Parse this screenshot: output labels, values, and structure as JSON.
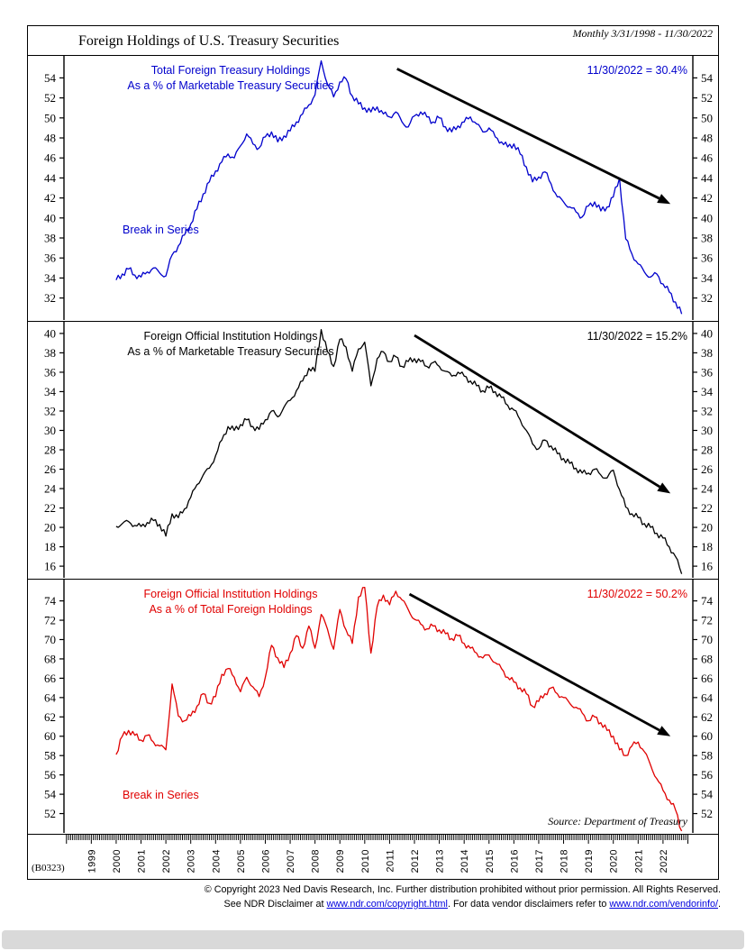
{
  "header": {
    "title": "Foreign Holdings of U.S. Treasury Securities",
    "date_range": "Monthly 3/31/1998 - 11/30/2022"
  },
  "source_label": "Source: Department of Treasury",
  "footer": {
    "chart_id": "(B0323)",
    "copyright_line1": "© Copyright 2023 Ned Davis Research, Inc.  Further distribution prohibited without prior permission.  All Rights Reserved.",
    "disclaimer_prefix": "See NDR Disclaimer at ",
    "disclaimer_link1": "www.ndr.com/copyright.html",
    "disclaimer_middle": ". For data vendor disclaimers refer to ",
    "disclaimer_link2": "www.ndr.com/vendorinfo/",
    "disclaimer_suffix": "."
  },
  "x_axis": {
    "labels": [
      "1999",
      "2000",
      "2001",
      "2002",
      "2003",
      "2004",
      "2005",
      "2006",
      "2007",
      "2008",
      "2009",
      "2010",
      "2011",
      "2012",
      "2013",
      "2014",
      "2015",
      "2016",
      "2017",
      "2018",
      "2019",
      "2020",
      "2021",
      "2022"
    ]
  },
  "chart_data": [
    {
      "type": "line",
      "title_line1": "Total Foreign Treasury Holdings",
      "title_line2": "As a % of Marketable Treasury Securities",
      "value_label": "11/30/2022 = 30.4%",
      "break_label": "Break in Series",
      "color": "#0000cc",
      "x_range": [
        1997.9,
        2023.2
      ],
      "y_range": [
        29.8,
        56.2
      ],
      "y_ticks": [
        32,
        34,
        36,
        38,
        40,
        42,
        44,
        46,
        48,
        50,
        52,
        54
      ],
      "arrow": {
        "x1": 2011.3,
        "y1": 54.9,
        "x2": 2022.3,
        "y2": 41.4
      },
      "series": {
        "x0": 2000.0,
        "dx": 0.25,
        "values": [
          33.8,
          34.4,
          34.9,
          34.3,
          34.1,
          34.6,
          35.0,
          34.5,
          34.2,
          36.3,
          37.2,
          38.3,
          39.4,
          40.9,
          42.4,
          43.6,
          44.7,
          45.6,
          46.4,
          46.0,
          47.2,
          48.4,
          47.4,
          47.0,
          48.1,
          48.6,
          47.6,
          48.2,
          48.7,
          49.6,
          50.4,
          51.3,
          52.3,
          55.7,
          53.4,
          52.1,
          53.6,
          53.9,
          52.2,
          51.4,
          51.0,
          50.6,
          51.1,
          50.4,
          50.1,
          50.6,
          49.6,
          49.1,
          50.2,
          50.6,
          50.1,
          49.6,
          50.0,
          49.1,
          48.6,
          49.2,
          49.6,
          50.1,
          49.4,
          48.6,
          49.0,
          48.1,
          47.6,
          47.1,
          47.4,
          46.4,
          45.1,
          43.6,
          44.1,
          44.6,
          43.4,
          42.1,
          41.6,
          41.1,
          40.6,
          40.1,
          41.2,
          41.6,
          40.7,
          41.1,
          42.1,
          44.0,
          37.9,
          36.4,
          35.4,
          34.6,
          34.1,
          34.4,
          33.4,
          32.6,
          31.6,
          30.4
        ]
      }
    },
    {
      "type": "line",
      "title_line1": "Foreign Official Institution Holdings",
      "title_line2": "As a % of Marketable Treasury Securities",
      "value_label": "11/30/2022 = 15.2%",
      "color": "#000000",
      "x_range": [
        1997.9,
        2023.2
      ],
      "y_range": [
        14.8,
        41.2
      ],
      "y_ticks": [
        16,
        18,
        20,
        22,
        24,
        26,
        28,
        30,
        32,
        34,
        36,
        38,
        40
      ],
      "arrow": {
        "x1": 2012.0,
        "y1": 39.8,
        "x2": 2022.3,
        "y2": 23.5
      },
      "series": {
        "x0": 2000.0,
        "dx": 0.25,
        "values": [
          20.1,
          20.4,
          20.6,
          20.2,
          20.1,
          20.5,
          20.7,
          20.3,
          19.1,
          21.4,
          21.0,
          21.9,
          23.1,
          24.4,
          25.4,
          26.1,
          27.4,
          29.0,
          30.4,
          30.0,
          30.6,
          31.1,
          30.4,
          30.1,
          31.1,
          32.0,
          31.4,
          32.4,
          33.1,
          34.1,
          35.1,
          36.4,
          36.1,
          40.4,
          38.1,
          36.6,
          39.4,
          38.6,
          36.1,
          38.4,
          39.1,
          34.6,
          37.4,
          38.1,
          37.1,
          37.6,
          36.6,
          37.1,
          37.4,
          37.1,
          36.6,
          37.0,
          36.6,
          36.1,
          35.6,
          36.0,
          35.6,
          35.1,
          34.6,
          34.1,
          34.4,
          34.0,
          33.4,
          32.6,
          32.1,
          31.1,
          30.0,
          28.6,
          28.1,
          29.0,
          28.4,
          27.6,
          27.1,
          26.6,
          26.1,
          25.6,
          25.6,
          26.0,
          25.4,
          25.1,
          25.9,
          23.9,
          22.1,
          21.4,
          21.0,
          20.4,
          20.0,
          19.4,
          18.9,
          18.0,
          17.0,
          15.2
        ]
      }
    },
    {
      "type": "line",
      "title_line1": "Foreign Official Institution Holdings",
      "title_line2": "As a % of Total Foreign Holdings",
      "value_label": "11/30/2022 = 50.2%",
      "break_label": "Break in Series",
      "color": "#e00000",
      "x_range": [
        1997.9,
        2023.2
      ],
      "y_range": [
        50.0,
        76.2
      ],
      "y_ticks": [
        52,
        54,
        56,
        58,
        60,
        62,
        64,
        66,
        68,
        70,
        72,
        74
      ],
      "arrow": {
        "x1": 2011.8,
        "y1": 74.7,
        "x2": 2022.3,
        "y2": 60.0
      },
      "series": {
        "x0": 2000.0,
        "dx": 0.25,
        "values": [
          58.1,
          60.0,
          60.6,
          60.1,
          59.6,
          60.1,
          59.4,
          59.0,
          58.6,
          65.4,
          62.1,
          61.6,
          62.1,
          63.1,
          64.4,
          63.4,
          64.1,
          66.4,
          67.0,
          66.1,
          64.6,
          66.1,
          65.1,
          64.1,
          66.1,
          69.4,
          68.1,
          67.1,
          68.6,
          70.4,
          69.1,
          71.4,
          69.1,
          72.6,
          71.1,
          69.0,
          73.1,
          71.0,
          69.6,
          74.4,
          75.4,
          68.6,
          73.4,
          74.6,
          73.6,
          75.0,
          74.1,
          73.1,
          72.1,
          71.6,
          71.1,
          71.4,
          71.0,
          70.6,
          70.1,
          70.4,
          69.6,
          69.1,
          68.6,
          68.1,
          68.4,
          67.6,
          67.0,
          66.1,
          65.6,
          65.0,
          64.4,
          63.1,
          63.6,
          64.4,
          65.0,
          64.4,
          64.0,
          63.4,
          63.0,
          62.4,
          61.6,
          62.0,
          61.4,
          60.6,
          60.0,
          58.6,
          58.0,
          59.0,
          59.4,
          58.4,
          57.0,
          55.6,
          54.4,
          53.4,
          52.4,
          50.2
        ]
      }
    }
  ]
}
